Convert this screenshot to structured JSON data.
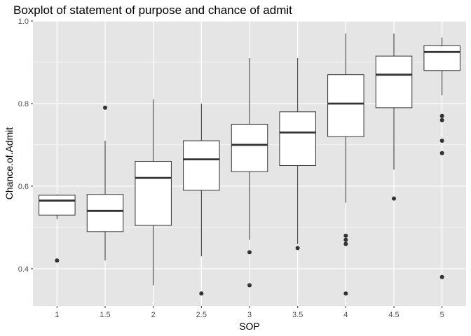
{
  "chart_data": {
    "type": "boxplot",
    "title": "Boxplot of statement of purpose and chance of admit",
    "xlabel": "SOP",
    "ylabel": "Chance.of.Admit",
    "categories": [
      "1",
      "1.5",
      "2",
      "2.5",
      "3",
      "3.5",
      "4",
      "4.5",
      "5"
    ],
    "ylim": [
      0.31,
      1.0
    ],
    "yticks": [
      0.4,
      0.6,
      0.8,
      1.0
    ],
    "ytick_labels": [
      "0.4",
      "0.6",
      "0.8",
      "1.0"
    ],
    "grid": true,
    "colors": {
      "panel_background": "#e5e5e5",
      "grid": "#ffffff",
      "box_fill": "#ffffff",
      "box_stroke": "#333333",
      "outlier": "#333333"
    },
    "boxes": [
      {
        "category": "1",
        "whisker_low": 0.52,
        "q1": 0.53,
        "median": 0.565,
        "q3": 0.578,
        "whisker_high": 0.58,
        "outliers": [
          0.42
        ]
      },
      {
        "category": "1.5",
        "whisker_low": 0.42,
        "q1": 0.49,
        "median": 0.54,
        "q3": 0.58,
        "whisker_high": 0.71,
        "outliers": [
          0.79
        ]
      },
      {
        "category": "2",
        "whisker_low": 0.36,
        "q1": 0.505,
        "median": 0.62,
        "q3": 0.66,
        "whisker_high": 0.81,
        "outliers": []
      },
      {
        "category": "2.5",
        "whisker_low": 0.43,
        "q1": 0.59,
        "median": 0.665,
        "q3": 0.71,
        "whisker_high": 0.8,
        "outliers": [
          0.34
        ]
      },
      {
        "category": "3",
        "whisker_low": 0.47,
        "q1": 0.635,
        "median": 0.7,
        "q3": 0.75,
        "whisker_high": 0.91,
        "outliers": [
          0.44,
          0.36
        ]
      },
      {
        "category": "3.5",
        "whisker_low": 0.46,
        "q1": 0.65,
        "median": 0.73,
        "q3": 0.78,
        "whisker_high": 0.91,
        "outliers": [
          0.45
        ]
      },
      {
        "category": "4",
        "whisker_low": 0.56,
        "q1": 0.72,
        "median": 0.8,
        "q3": 0.87,
        "whisker_high": 0.97,
        "outliers": [
          0.48,
          0.47,
          0.46,
          0.34
        ]
      },
      {
        "category": "4.5",
        "whisker_low": 0.64,
        "q1": 0.79,
        "median": 0.87,
        "q3": 0.915,
        "whisker_high": 0.97,
        "outliers": [
          0.57
        ]
      },
      {
        "category": "5",
        "whisker_low": 0.82,
        "q1": 0.88,
        "median": 0.925,
        "q3": 0.94,
        "whisker_high": 0.96,
        "outliers": [
          0.77,
          0.76,
          0.71,
          0.68,
          0.38
        ]
      }
    ]
  }
}
